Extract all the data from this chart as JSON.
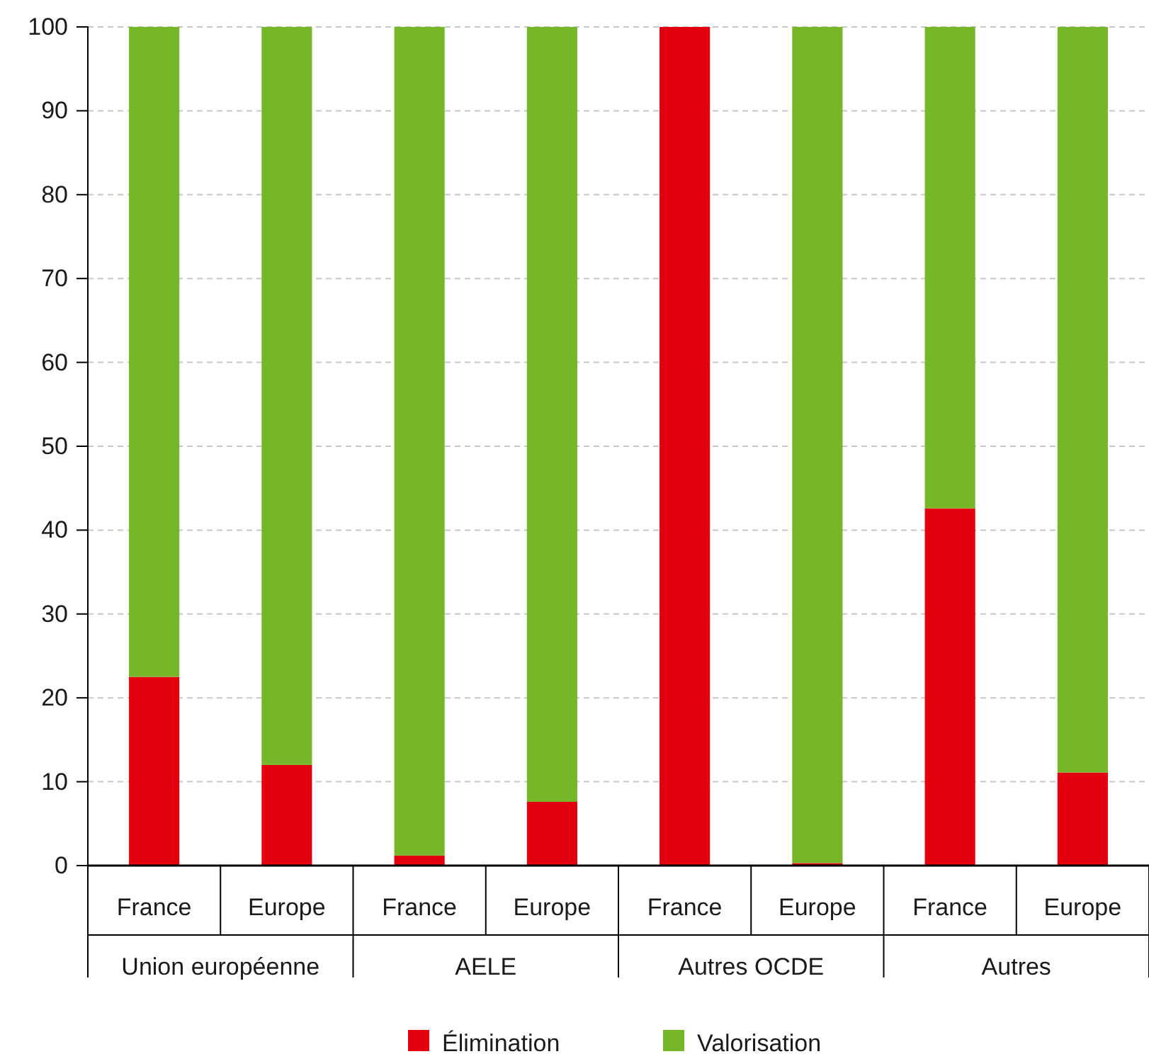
{
  "chart_data": {
    "type": "bar",
    "stacked": true,
    "categories": [
      "France",
      "Europe",
      "France",
      "Europe",
      "France",
      "Europe",
      "France",
      "Europe"
    ],
    "annotations": [
      "Union européenne",
      "AELE",
      "Autres OCDE",
      "Autres"
    ],
    "series": [
      {
        "name": "Élimination",
        "color": "#e2000f",
        "values": [
          22.5,
          12.0,
          1.2,
          7.6,
          100,
          0.3,
          42.6,
          11.1
        ]
      },
      {
        "name": "Valorisation",
        "color": "#76b72a",
        "values": [
          77.5,
          88.0,
          98.8,
          92.4,
          0,
          99.7,
          57.4,
          88.9
        ]
      }
    ],
    "ylim": [
      0,
      100
    ],
    "yticks": [
      0,
      10,
      20,
      30,
      40,
      50,
      60,
      70,
      80,
      90,
      100
    ],
    "grid": "y",
    "legend": "bottom"
  }
}
